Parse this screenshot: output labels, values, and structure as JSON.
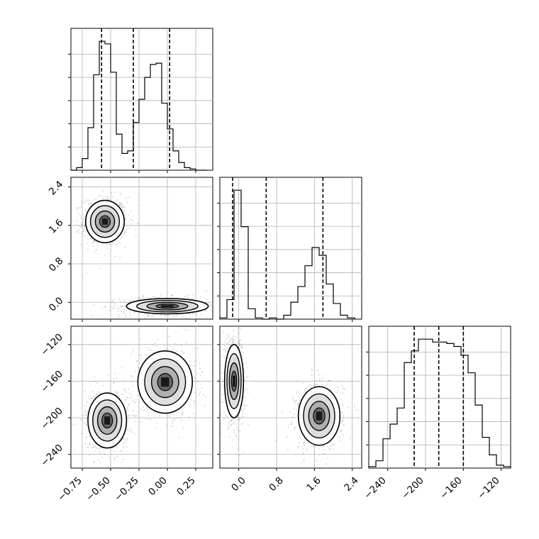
{
  "chart_data": [
    {
      "type": "histogram",
      "panel": "p1-marginal",
      "xlim": [
        -0.85,
        0.4
      ],
      "bins_x": [
        -0.85,
        -0.8,
        -0.75,
        -0.7,
        -0.65,
        -0.6,
        -0.55,
        -0.5,
        -0.45,
        -0.4,
        -0.35,
        -0.3,
        -0.25,
        -0.2,
        -0.15,
        -0.1,
        -0.05,
        0.0,
        0.05,
        0.1,
        0.15,
        0.2,
        0.25,
        0.3,
        0.35
      ],
      "counts": [
        0,
        2,
        9,
        33,
        74,
        100,
        98,
        76,
        28,
        13,
        15,
        37,
        55,
        72,
        82,
        83,
        52,
        32,
        15,
        6,
        2,
        1,
        0,
        0
      ],
      "quantiles": [
        -0.58,
        -0.3,
        0.02
      ],
      "grid": true
    },
    {
      "type": "histogram",
      "panel": "p2-marginal",
      "xlim": [
        -0.4,
        2.6
      ],
      "bins_x": [
        -0.4,
        -0.25,
        -0.1,
        0.05,
        0.2,
        0.35,
        0.5,
        0.65,
        0.8,
        0.95,
        1.1,
        1.25,
        1.4,
        1.55,
        1.7,
        1.85,
        2.0,
        2.15,
        2.3,
        2.45
      ],
      "counts": [
        1,
        15,
        99,
        71,
        8,
        1,
        0,
        1,
        0,
        3,
        13,
        25,
        41,
        55,
        49,
        27,
        12,
        3,
        1
      ],
      "quantiles": [
        -0.13,
        0.58,
        1.78
      ],
      "grid": true
    },
    {
      "type": "histogram",
      "panel": "p3-marginal",
      "xlim": [
        -260,
        -110
      ],
      "bins_x": [
        -260,
        -252.5,
        -245,
        -237.5,
        -230,
        -222.5,
        -215,
        -207.5,
        -200,
        -192.5,
        -185,
        -177.5,
        -170,
        -162.5,
        -155,
        -147.5,
        -140,
        -132.5,
        -125,
        -117.5,
        -110
      ],
      "counts": [
        1,
        5,
        20,
        30,
        41,
        72,
        80,
        88,
        88,
        86,
        86,
        85,
        83,
        77,
        65,
        43,
        21,
        9,
        2,
        1
      ],
      "quantiles": [
        -212,
        -186,
        -160
      ],
      "grid": true
    },
    {
      "type": "heatmap",
      "panel": "p2-vs-p1",
      "xlim": [
        -0.85,
        0.4
      ],
      "ylim": [
        -0.35,
        2.6
      ],
      "clusters": [
        {
          "center": [
            -0.55,
            1.68
          ],
          "sigma": [
            0.085,
            0.22
          ],
          "weight": 0.5
        },
        {
          "center": [
            0.0,
            -0.08
          ],
          "sigma": [
            0.18,
            0.08
          ],
          "weight": 0.5
        }
      ],
      "grid": true
    },
    {
      "type": "heatmap",
      "panel": "p3-vs-p1",
      "xlim": [
        -0.85,
        0.4
      ],
      "ylim": [
        -255,
        -100
      ],
      "clusters": [
        {
          "center": [
            -0.53,
            -203
          ],
          "sigma": [
            0.085,
            15
          ],
          "weight": 0.5
        },
        {
          "center": [
            -0.02,
            -161
          ],
          "sigma": [
            0.12,
            17
          ],
          "weight": 0.5
        }
      ],
      "grid": true
    },
    {
      "type": "heatmap",
      "panel": "p3-vs-p2",
      "xlim": [
        -0.4,
        2.6
      ],
      "ylim": [
        -255,
        -100
      ],
      "clusters": [
        {
          "center": [
            -0.1,
            -160
          ],
          "sigma": [
            0.1,
            20
          ],
          "weight": 0.5
        },
        {
          "center": [
            1.7,
            -198
          ],
          "sigma": [
            0.22,
            16
          ],
          "weight": 0.5
        }
      ],
      "grid": true
    }
  ],
  "axes": {
    "p1_ticks": [
      "−0.75",
      "−0.50",
      "−0.25",
      "0.00",
      "0.25"
    ],
    "p2_ticks": [
      "0.0",
      "0.8",
      "1.6",
      "2.4"
    ],
    "p3_ticks": [
      "−240",
      "−200",
      "−160",
      "−120"
    ]
  }
}
